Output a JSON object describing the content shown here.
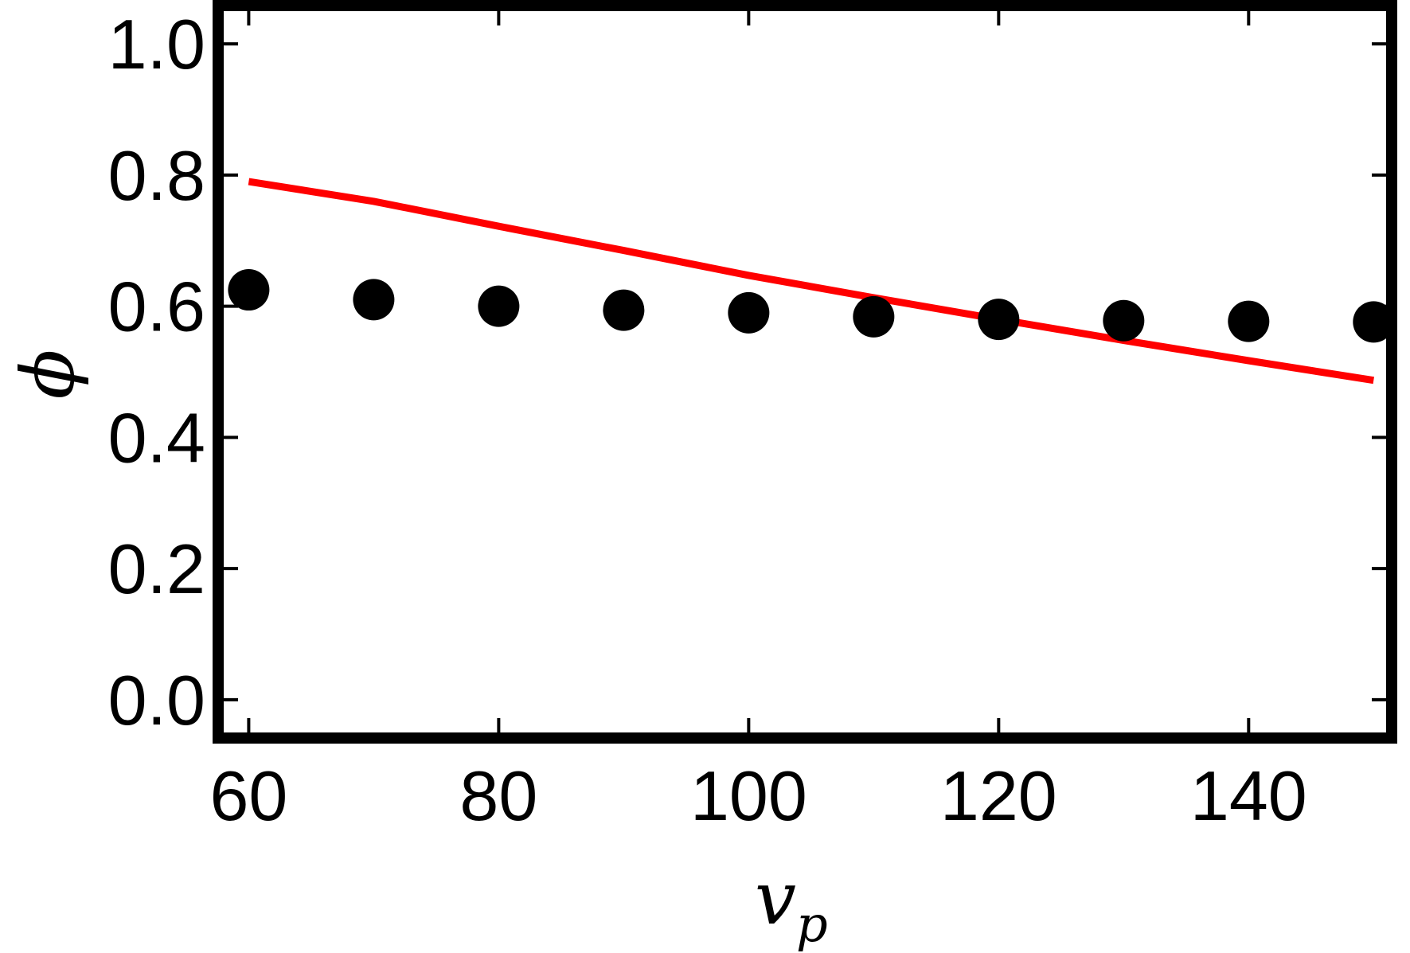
{
  "chart_data": {
    "type": "scatter",
    "xlabel": "v",
    "xlabel_subscript": "p",
    "ylabel": "ϕ",
    "xlim": [
      58,
      151
    ],
    "ylim": [
      -0.05,
      1.05
    ],
    "x_ticks": [
      60,
      80,
      100,
      120,
      140
    ],
    "y_ticks": [
      0.0,
      0.2,
      0.4,
      0.6,
      0.8,
      1.0
    ],
    "x_tick_labels": [
      "60",
      "80",
      "100",
      "120",
      "140"
    ],
    "y_tick_labels": [
      "0.0",
      "0.2",
      "0.4",
      "0.6",
      "0.8",
      "1.0"
    ],
    "grid": false,
    "series": [
      {
        "kind": "points",
        "color": "#000000",
        "x": [
          60,
          70,
          80,
          90,
          100,
          110,
          120,
          130,
          140,
          150
        ],
        "y": [
          0.625,
          0.61,
          0.6,
          0.594,
          0.59,
          0.584,
          0.58,
          0.578,
          0.577,
          0.576
        ]
      },
      {
        "kind": "line",
        "color": "#ff0000",
        "x": [
          60,
          70,
          80,
          90,
          100,
          110,
          120,
          130,
          140,
          150
        ],
        "y": [
          0.79,
          0.76,
          0.722,
          0.685,
          0.647,
          0.613,
          0.58,
          0.548,
          0.517,
          0.487
        ]
      }
    ]
  }
}
